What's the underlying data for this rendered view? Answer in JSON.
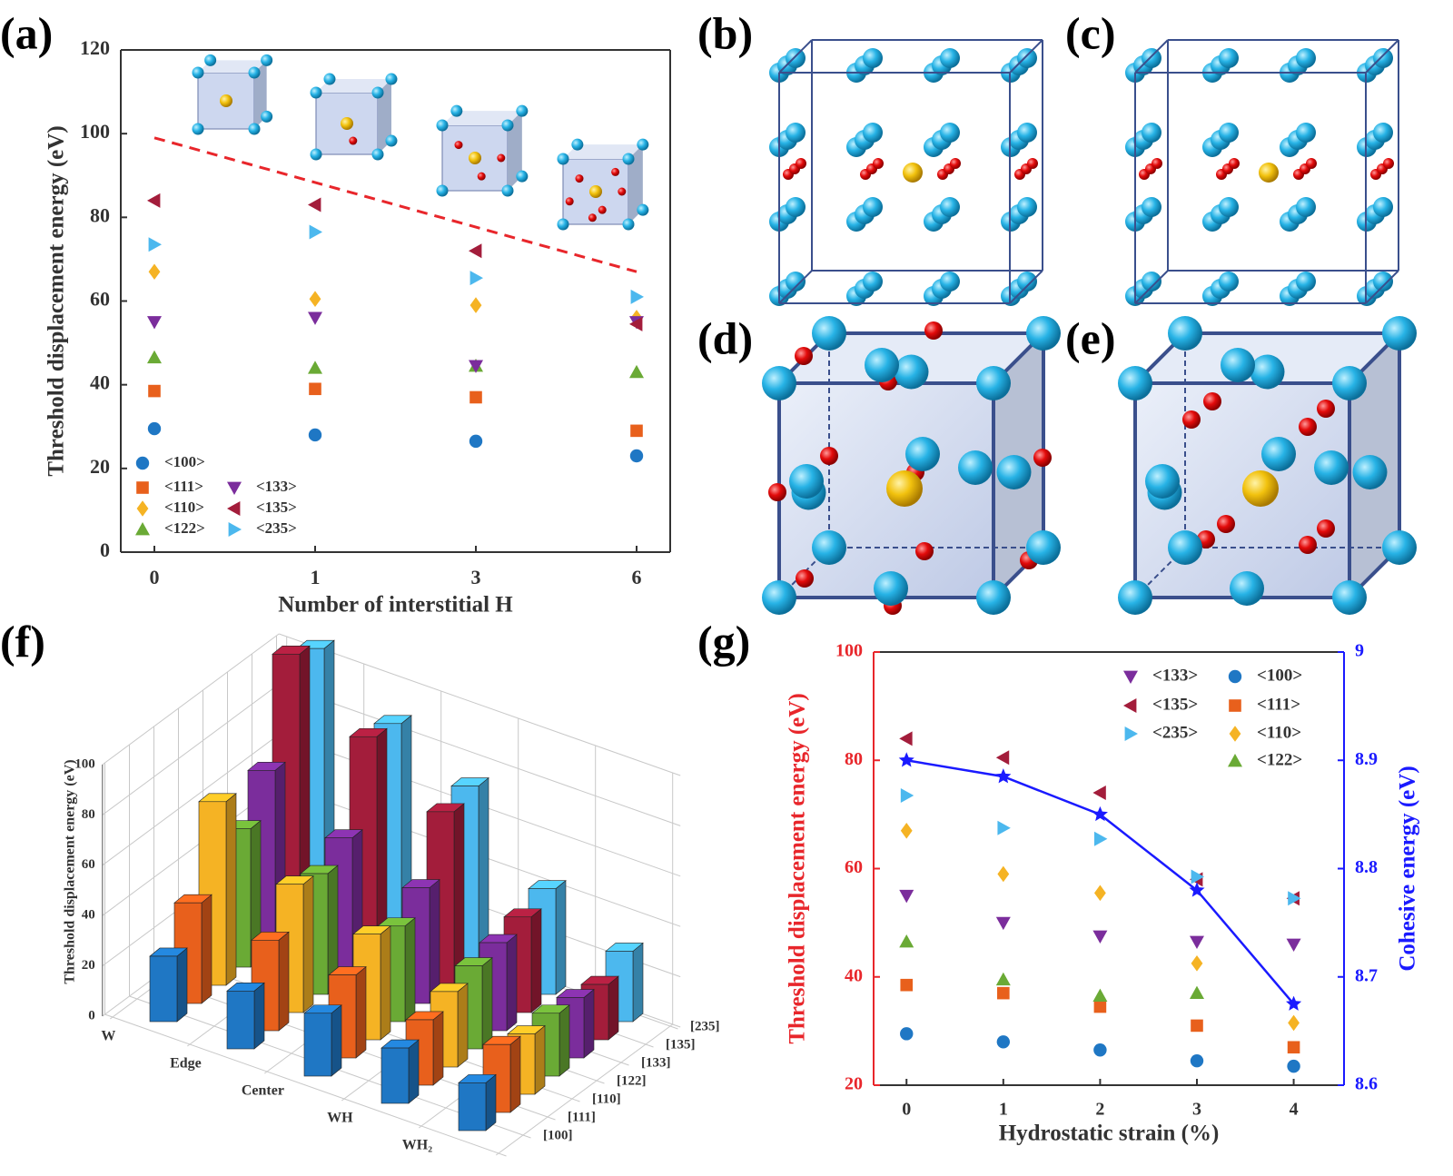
{
  "diagram_labels": [
    "(b)",
    "(c)",
    "(d)",
    "(e)"
  ],
  "chart_data": [
    {
      "type": "scatter",
      "panel": "(a)",
      "x_label": "Number of interstitial H",
      "y_label": "Threshold displacement energy (eV)",
      "categories": [
        "0",
        "1",
        "3",
        "6"
      ],
      "ylim": [
        0,
        120
      ],
      "yticks": [
        0,
        20,
        40,
        60,
        80,
        100,
        120
      ],
      "series": [
        {
          "name": "<100>",
          "color": "#1f77c4",
          "marker": "circle",
          "values": [
            29.5,
            28,
            26.5,
            23
          ]
        },
        {
          "name": "<111>",
          "color": "#e8601c",
          "marker": "square",
          "values": [
            38.5,
            39,
            37,
            29
          ]
        },
        {
          "name": "<110>",
          "color": "#f5b324",
          "marker": "diamond",
          "values": [
            67,
            60.5,
            59,
            56
          ]
        },
        {
          "name": "<122>",
          "color": "#6aaa35",
          "marker": "tri-up",
          "values": [
            46.5,
            44,
            44.5,
            43
          ]
        },
        {
          "name": "<133>",
          "color": "#7b2d9c",
          "marker": "tri-down",
          "values": [
            55,
            56,
            44.5,
            55
          ]
        },
        {
          "name": "<135>",
          "color": "#a31d3b",
          "marker": "tri-left",
          "values": [
            84,
            83,
            72,
            54.5
          ]
        },
        {
          "name": "<235>",
          "color": "#4cb8ee",
          "marker": "tri-right",
          "values": [
            73.5,
            76.5,
            65.5,
            61
          ]
        }
      ],
      "trend": {
        "values": [
          99,
          67
        ],
        "color": "#e8262b"
      }
    },
    {
      "type": "bar3d",
      "panel": "(f)",
      "z_label": "Threshold displacement energy (eV)",
      "categories": [
        "W",
        "Edge",
        "Center",
        "WH",
        "WH₂"
      ],
      "zlim": [
        0,
        100
      ],
      "zticks": [
        0,
        20,
        40,
        60,
        80,
        100
      ],
      "series": [
        {
          "name": "[100]",
          "color": "#1f77c4",
          "values": [
            26,
            23,
            25,
            22,
            19
          ]
        },
        {
          "name": "[111]",
          "color": "#e8601c",
          "values": [
            40,
            36,
            33,
            26,
            27
          ]
        },
        {
          "name": "[110]",
          "color": "#f5b324",
          "values": [
            73,
            51,
            42,
            30,
            24
          ]
        },
        {
          "name": "[122]",
          "color": "#6aaa35",
          "values": [
            55,
            48,
            38,
            33,
            25
          ]
        },
        {
          "name": "[133]",
          "color": "#7b2d9c",
          "values": [
            71,
            55,
            46,
            35,
            24
          ]
        },
        {
          "name": "[135]",
          "color": "#a31d3b",
          "values": [
            110,
            88,
            69,
            38,
            22
          ]
        },
        {
          "name": "[235]",
          "color": "#4cb8ee",
          "values": [
            105,
            86,
            72,
            42,
            28
          ]
        }
      ]
    },
    {
      "type": "scatter",
      "panel": "(g)",
      "x_label": "Hydrostatic strain (%)",
      "y_label": "Threshold displacement energy (eV)",
      "y2_label": "Cohesive energy (eV)",
      "y_color": "#e8262b",
      "y2_color": "#1a1aff",
      "x": [
        0,
        1,
        2,
        3,
        4
      ],
      "xlim": [
        -0.34,
        4.52
      ],
      "xticks": [
        0,
        1,
        2,
        3,
        4
      ],
      "ylim": [
        20,
        100
      ],
      "yticks": [
        20,
        40,
        60,
        80,
        100
      ],
      "y2lim": [
        8.6,
        9
      ],
      "y2ticks": [
        8.6,
        8.7,
        8.8,
        8.9,
        9
      ],
      "series": [
        {
          "name": "<133>",
          "color": "#7b2d9c",
          "marker": "tri-down",
          "values": [
            55,
            50,
            47.5,
            46.5,
            46
          ]
        },
        {
          "name": "<135>",
          "color": "#a31d3b",
          "marker": "tri-left",
          "values": [
            84,
            80.5,
            74,
            58,
            54.5
          ]
        },
        {
          "name": "<235>",
          "color": "#4cb8ee",
          "marker": "tri-right",
          "values": [
            73.5,
            67.5,
            65.5,
            58.5,
            54.5
          ]
        },
        {
          "name": "<100>",
          "color": "#1f77c4",
          "marker": "circle",
          "values": [
            29.5,
            28,
            26.5,
            24.5,
            23.5
          ]
        },
        {
          "name": "<111>",
          "color": "#e8601c",
          "marker": "square",
          "values": [
            38.5,
            37,
            34.5,
            31,
            27
          ]
        },
        {
          "name": "<110>",
          "color": "#f5b324",
          "marker": "diamond",
          "values": [
            67,
            59,
            55.5,
            42.5,
            31.5
          ]
        },
        {
          "name": "<122>",
          "color": "#6aaa35",
          "marker": "tri-up",
          "values": [
            46.5,
            39.5,
            36.5,
            37,
            null
          ]
        },
        {
          "axis": "y2",
          "color": "#1a1aff",
          "marker": "star",
          "line": true,
          "values": [
            8.9,
            8.885,
            8.85,
            8.78,
            8.675
          ]
        }
      ]
    }
  ]
}
